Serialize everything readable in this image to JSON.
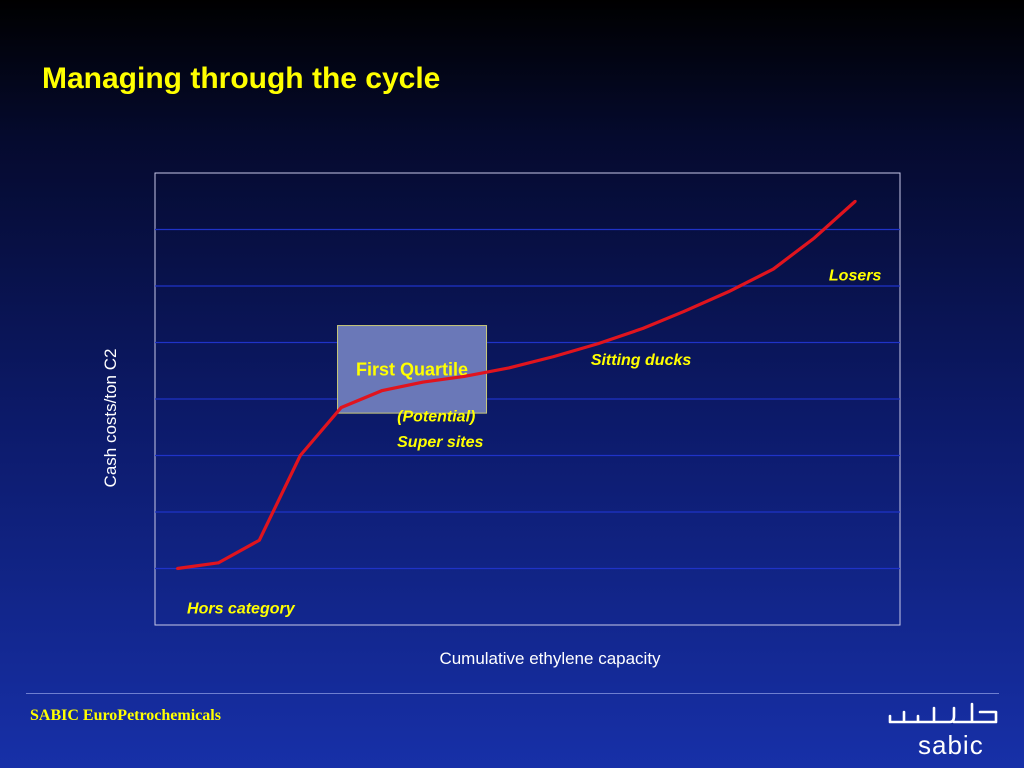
{
  "slide": {
    "title": "Managing through the cycle",
    "footer": "SABIC EuroPetrochemicals",
    "logo_text": "sabic"
  },
  "colors": {
    "title": "#ffff00",
    "curve": "#e0141e",
    "box_fill": "#6a78b8",
    "grid": "#1f33c8"
  },
  "chart_data": {
    "type": "line",
    "xlabel": "Cumulative ethylene capacity",
    "ylabel": "Cash costs/ton C2",
    "grid": true,
    "x_ticks_shown": false,
    "y_ticks_shown": false,
    "xlim": [
      0,
      100
    ],
    "ylim": [
      0,
      8
    ],
    "series": [
      {
        "values_x": [
          3,
          8.5,
          14,
          19.5,
          25,
          30.5,
          36,
          41.5,
          47.5,
          53.5,
          59.5,
          65.5,
          71,
          77,
          83,
          88.5,
          94
        ],
        "values_y": [
          1.0,
          1.1,
          1.5,
          3.0,
          3.85,
          4.15,
          4.3,
          4.4,
          4.55,
          4.75,
          4.98,
          5.25,
          5.55,
          5.9,
          6.3,
          6.85,
          7.5
        ]
      }
    ],
    "highlight_box": {
      "label": "First Quartile",
      "x_range": [
        24.5,
        44.5
      ],
      "y_range": [
        3.75,
        5.3
      ]
    },
    "annotations": [
      {
        "id": "losers",
        "text": "Losers",
        "x": 97.5,
        "y": 6.1,
        "anchor": "end"
      },
      {
        "id": "sitting-ducks",
        "text": "Sitting ducks",
        "x": 58.5,
        "y": 4.6,
        "anchor": "start"
      },
      {
        "id": "potential",
        "text": "(Potential)",
        "x": 32.5,
        "y": 3.6,
        "anchor": "start"
      },
      {
        "id": "super-sites",
        "text": "Super sites",
        "x": 32.5,
        "y": 3.15,
        "anchor": "start"
      },
      {
        "id": "hors-category",
        "text": "Hors category",
        "x": 4.3,
        "y": 0.2,
        "anchor": "start"
      }
    ]
  }
}
